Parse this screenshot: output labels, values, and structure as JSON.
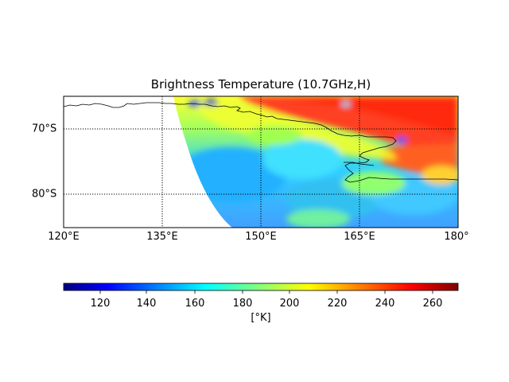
{
  "figure": {
    "title": "Brightness Temperature (10.7GHz,H)",
    "colorbar_label": "[°K]"
  },
  "map": {
    "lon_labels": [
      "120°E",
      "135°E",
      "150°E",
      "165°E",
      "180°"
    ],
    "lat_labels": [
      "70°S",
      "80°S"
    ],
    "lon_range": [
      120,
      180
    ],
    "lat_range": [
      -65,
      -85
    ],
    "colormap": "jet",
    "gridlines": "dotted"
  },
  "colorbar": {
    "ticks": [
      "120",
      "140",
      "160",
      "180",
      "200",
      "220",
      "240",
      "260"
    ],
    "range": [
      105,
      270
    ]
  }
}
